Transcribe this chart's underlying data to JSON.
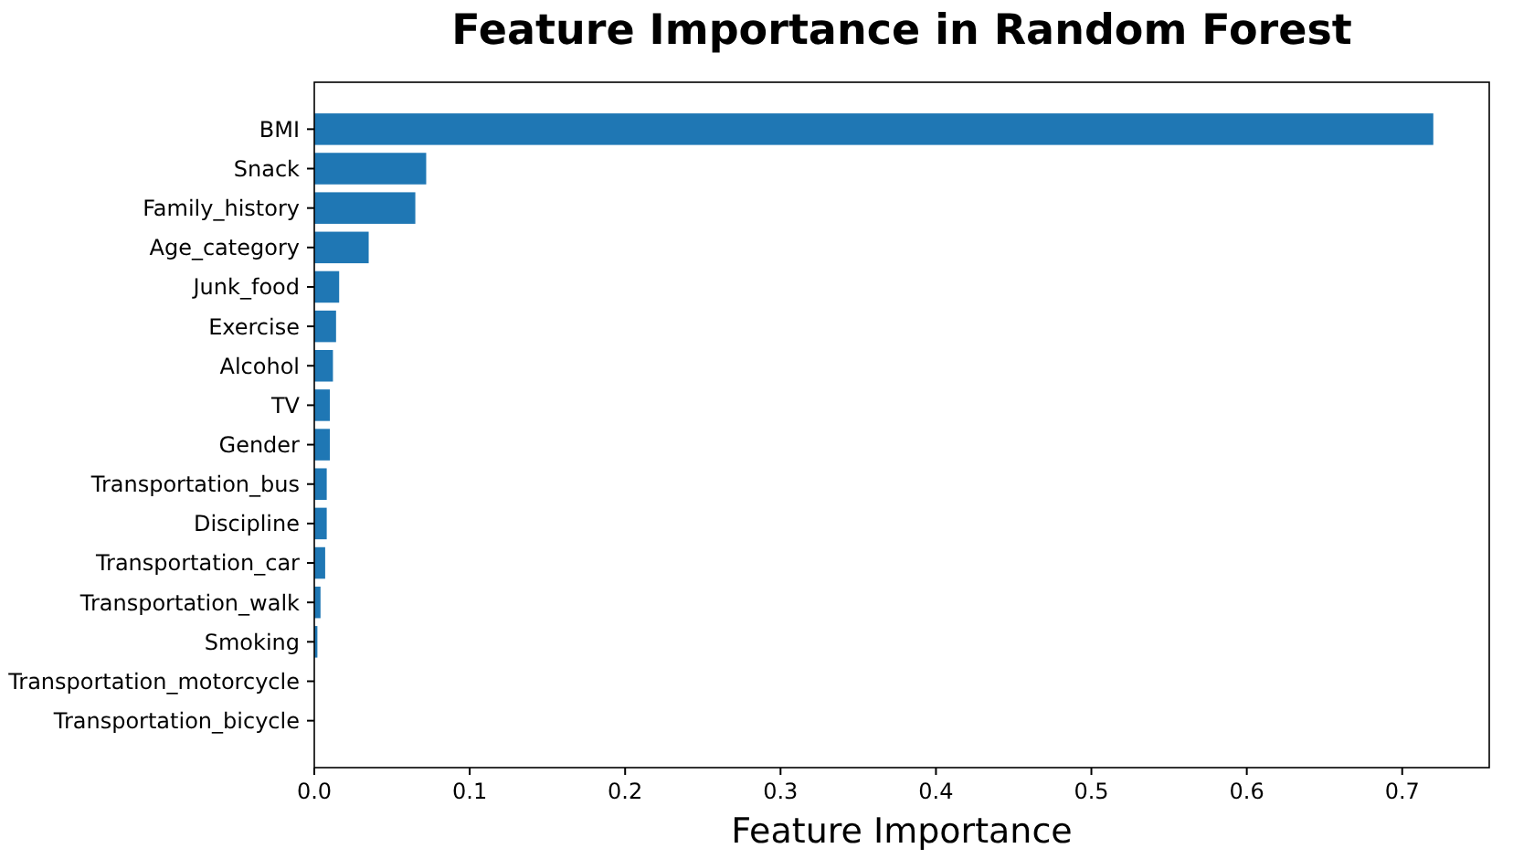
{
  "chart_data": {
    "type": "bar",
    "orientation": "horizontal",
    "title": "Feature Importance in Random Forest",
    "xlabel": "Feature Importance",
    "categories": [
      "BMI",
      "Snack",
      "Family_history",
      "Age_category",
      "Junk_food",
      "Exercise",
      "Alcohol",
      "TV",
      "Gender",
      "Transportation_bus",
      "Discipline",
      "Transportation_car",
      "Transportation_walk",
      "Smoking",
      "Transportation_motorcycle",
      "Transportation_bicycle"
    ],
    "values": [
      0.72,
      0.072,
      0.065,
      0.035,
      0.016,
      0.014,
      0.012,
      0.01,
      0.01,
      0.008,
      0.008,
      0.007,
      0.004,
      0.002,
      0,
      0
    ],
    "color": "#1f77b4",
    "xlim": [
      0,
      0.756
    ],
    "xticks": [
      {
        "value": 0,
        "label": "0.0"
      },
      0.1,
      0.2,
      0.3,
      0.4,
      0.5,
      0.6,
      0.7
    ],
    "grid": false
  }
}
